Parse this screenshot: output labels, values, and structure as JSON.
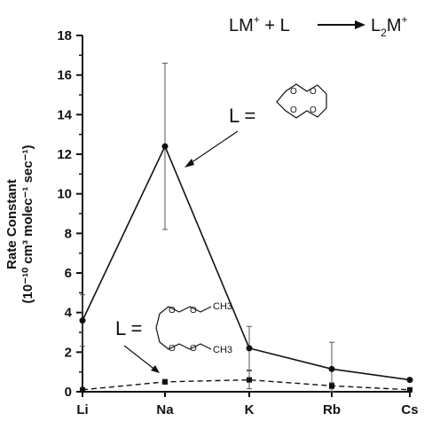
{
  "chart_data": {
    "type": "line",
    "title": "LM⁺ + L ⟶ L₂M⁺",
    "title_parts": {
      "lhs": "LM",
      "plus_sup": "+",
      "middle": " + L",
      "rhs": "L",
      "rhs_sub": "2",
      "rhs_m": "M",
      "rhs_sup": "+"
    },
    "ylabel_line1": "Rate Constant",
    "ylabel_line2": "(10⁻¹⁰ cm³ molec⁻¹ sec⁻¹)",
    "categories": [
      "Li",
      "Na",
      "K",
      "Rb",
      "Cs"
    ],
    "ylim": [
      0,
      18
    ],
    "yticks": [
      0,
      2,
      4,
      6,
      8,
      10,
      12,
      14,
      16,
      18
    ],
    "grid": false,
    "series": [
      {
        "ligand": "12-crown-4",
        "style": "solid",
        "marker": "circle",
        "color": "#111111",
        "values": [
          3.6,
          12.4,
          2.2,
          1.15,
          0.6
        ],
        "error": [
          1.3,
          4.2,
          1.1,
          1.35,
          0.05
        ]
      },
      {
        "ligand": "triglyme",
        "style": "dashed",
        "marker": "square",
        "color": "#111111",
        "values": [
          0.1,
          0.5,
          0.6,
          0.3,
          0.1
        ],
        "error": [
          0.05,
          0.12,
          0.45,
          0.15,
          0.05
        ]
      }
    ],
    "annotations": [
      {
        "text": "L =",
        "points_to_series": 0,
        "structure": "crown-ether-ring"
      },
      {
        "text": "L =",
        "points_to_series": 1,
        "structure": "linear-polyether",
        "groups": [
          "CH3",
          "CH3"
        ]
      }
    ]
  }
}
